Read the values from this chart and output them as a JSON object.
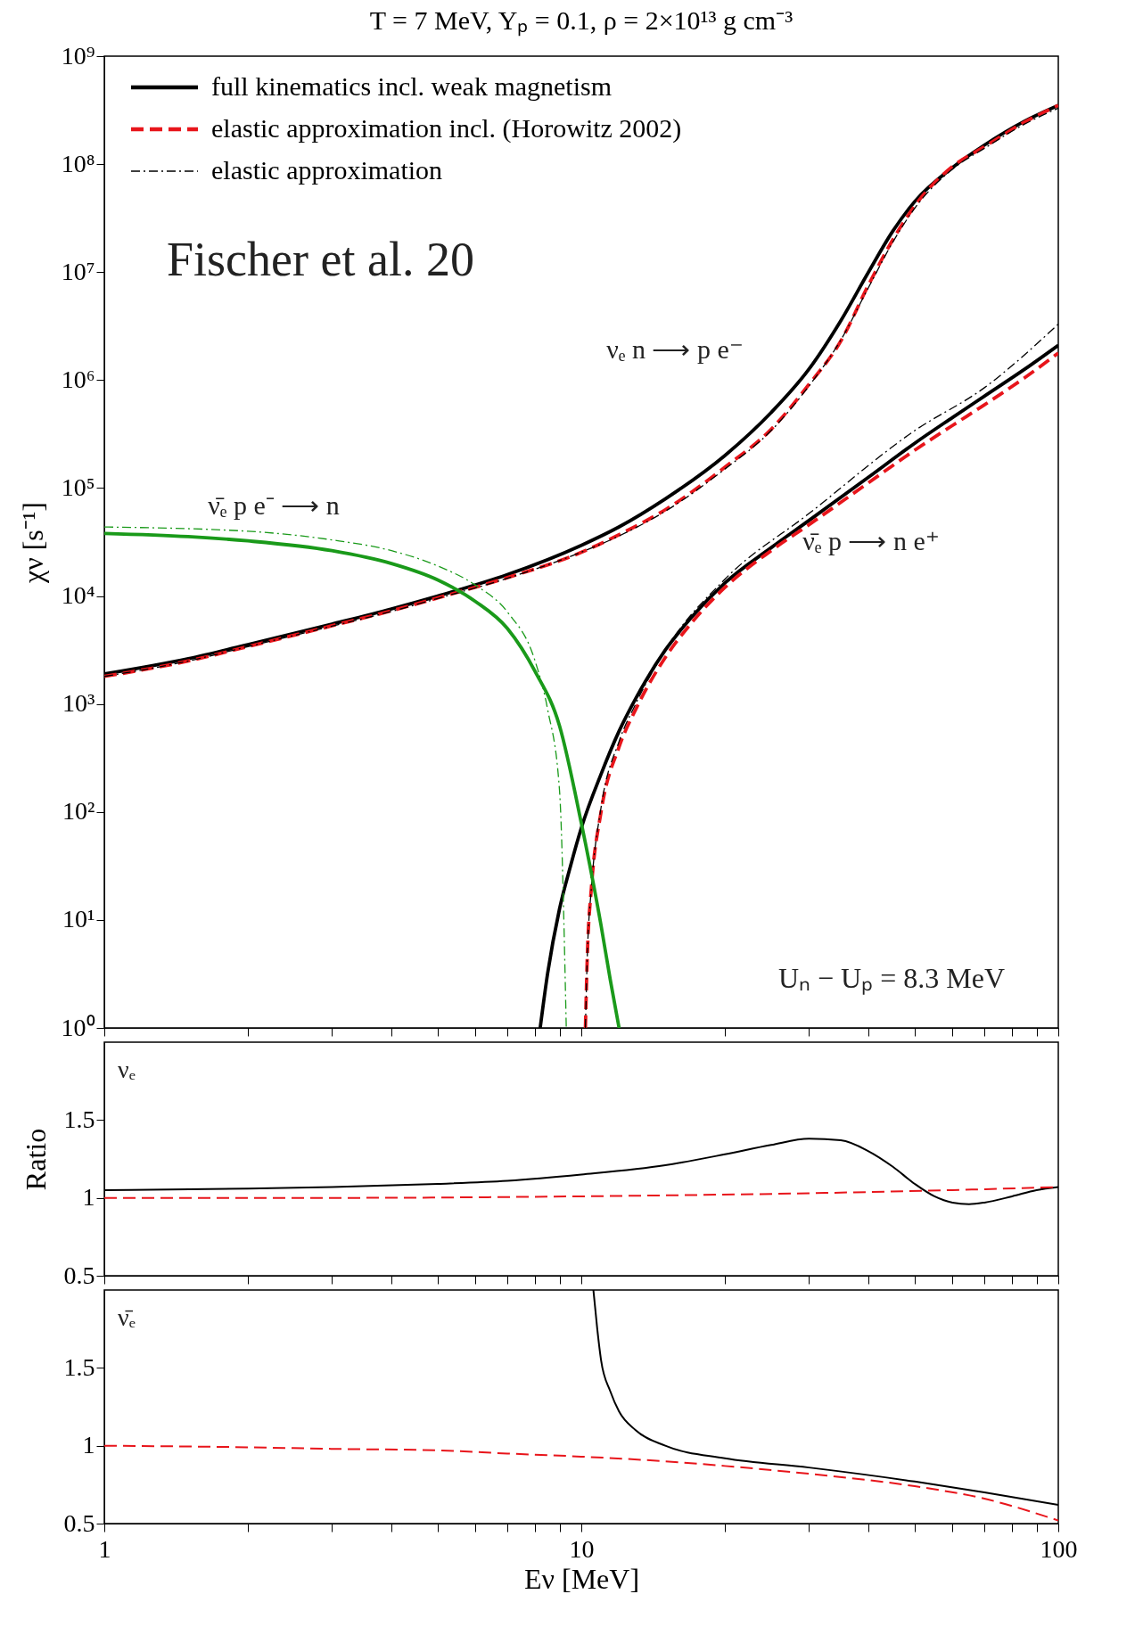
{
  "chart_data": [
    {
      "type": "line",
      "title": "T = 7 MeV, Yₚ = 0.1, ρ = 2×10¹³ g cm⁻³",
      "ylabel": "χν [s⁻¹]",
      "log": "xy",
      "xlim": [
        1,
        100
      ],
      "ylim": [
        1,
        1000000000
      ],
      "xticks": [
        1,
        {
          "value": 2,
          "label": null
        },
        {
          "value": 3,
          "label": null
        },
        {
          "value": 4,
          "label": null
        },
        {
          "value": 5,
          "label": null
        },
        {
          "value": 6,
          "label": null
        },
        {
          "value": 7,
          "label": null
        },
        {
          "value": 8,
          "label": null
        },
        {
          "value": 9,
          "label": null
        },
        10,
        {
          "value": 20,
          "label": null
        },
        {
          "value": 30,
          "label": null
        },
        {
          "value": 40,
          "label": null
        },
        {
          "value": 50,
          "label": null
        },
        {
          "value": 60,
          "label": null
        },
        {
          "value": 70,
          "label": null
        },
        {
          "value": 80,
          "label": null
        },
        {
          "value": 90,
          "label": null
        },
        100
      ],
      "yticks": [
        {
          "value": 1,
          "label": "10⁰"
        },
        {
          "value": 10,
          "label": "10¹"
        },
        {
          "value": 100,
          "label": "10²"
        },
        {
          "value": 1000,
          "label": "10³"
        },
        {
          "value": 10000,
          "label": "10⁴"
        },
        {
          "value": 100000,
          "label": "10⁵"
        },
        {
          "value": 1000000,
          "label": "10⁶"
        },
        {
          "value": 10000000,
          "label": "10⁷"
        },
        {
          "value": 100000000,
          "label": "10⁸"
        },
        {
          "value": 1000000000,
          "label": "10⁹"
        }
      ],
      "tick_labels": "y",
      "grid": false,
      "legend": "top left",
      "series": [
        {
          "name": "full kinematics incl. weak magnetism",
          "color": "#000000",
          "line_style": "solid",
          "x": [
            1,
            1.5,
            2,
            3,
            4,
            5,
            7,
            10,
            12,
            15,
            20,
            25,
            30,
            35,
            40,
            45,
            50,
            60,
            70,
            85,
            100
          ],
          "values": [
            1900,
            2630,
            3550,
            5500,
            7600,
            10000,
            15800,
            29500,
            43700,
            79400,
            200000,
            500000,
            1260000,
            3550000,
            10000000,
            24000000,
            45000000,
            93000000,
            150000000,
            250000000,
            350000000
          ]
        },
        {
          "name": "elastic approximation incl. (Horowitz 2002)",
          "color": "#e8151b",
          "line_style": "dashed",
          "x": [
            1,
            1.5,
            2,
            3,
            4,
            5,
            7,
            10,
            12,
            15,
            20,
            25,
            30,
            35,
            40,
            45,
            50,
            60,
            70,
            85,
            100
          ],
          "values": [
            1800,
            2500,
            3400,
            5300,
            7300,
            9600,
            14800,
            25400,
            37000,
            63000,
            156000,
            350000,
            910000,
            2300000,
            7600000,
            20000000,
            41000000,
            95000000,
            145000000,
            245000000,
            350000000
          ]
        },
        {
          "name": "elastic approximation",
          "color": "#000000",
          "line_style": "dotted",
          "x": [
            1,
            1.5,
            2,
            3,
            4,
            5,
            7,
            10,
            12,
            15,
            20,
            25,
            30,
            35,
            40,
            45,
            50,
            60,
            70,
            85,
            100
          ],
          "values": [
            1800,
            2500,
            3400,
            5250,
            7200,
            9500,
            14600,
            25500,
            36000,
            61000,
            150000,
            340000,
            880000,
            2350000,
            7200000,
            19000000,
            39000000,
            90000000,
            140000000,
            235000000,
            330000000
          ]
        },
        {
          "color": "#000000",
          "line_style": "solid",
          "x": [
            8.2,
            8.5,
            9,
            9.5,
            10,
            11,
            12,
            13,
            15,
            17,
            20,
            25,
            30,
            40,
            50,
            60,
            70,
            85,
            100
          ],
          "values": [
            1,
            3.2,
            12.6,
            32,
            71,
            224,
            560,
            1120,
            3160,
            6300,
            13200,
            28000,
            50000,
            126000,
            260000,
            450000,
            710000,
            1260000,
            2100000
          ]
        },
        {
          "color": "#e8151b",
          "line_style": "dashed",
          "x": [
            10.2,
            10.3,
            10.5,
            11,
            12,
            13,
            15,
            17,
            20,
            25,
            30,
            40,
            50,
            60,
            70,
            85,
            100
          ],
          "values": [
            1,
            5,
            20,
            100,
            400,
            890,
            2700,
            5600,
            12000,
            26300,
            45700,
            112000,
            224000,
            380000,
            590000,
            1050000,
            1780000
          ]
        },
        {
          "color": "#000000",
          "line_style": "dotted",
          "x": [
            10.2,
            10.3,
            10.5,
            11,
            12,
            13,
            15,
            20,
            30,
            50,
            70,
            100
          ],
          "values": [
            1,
            5,
            20,
            110,
            450,
            1000,
            3160,
            14300,
            58000,
            340000,
            850000,
            3300000
          ]
        },
        {
          "color": "#1a9a1a",
          "line_style": "solid",
          "x": [
            1,
            1.5,
            2,
            3,
            4,
            5,
            6,
            7,
            8,
            9,
            10,
            11,
            11.5,
            12
          ],
          "values": [
            38000,
            35500,
            32400,
            26300,
            20000,
            14100,
            8900,
            5000,
            2000,
            630,
            79,
            8.9,
            2.8,
            1
          ]
        },
        {
          "color": "#1a9a1a",
          "line_style": "dotted",
          "x": [
            1,
            2,
            3,
            4,
            5,
            6,
            7,
            8,
            8.5,
            9,
            9.3
          ],
          "values": [
            43600,
            39800,
            33100,
            26300,
            19000,
            12600,
            7100,
            2500,
            890,
            160,
            1
          ]
        }
      ],
      "annotations": [
        "νₑ n ⟶ p e⁻",
        "ν̄ₑ p e⁻ ⟶ n",
        "ν̄ₑ p ⟶ n e⁺",
        "Fischer et al. 20",
        "Uₙ − Uₚ = 8.3 MeV"
      ]
    },
    {
      "type": "line",
      "ylabel": "Ratio",
      "log": "x",
      "xlim": [
        1,
        100
      ],
      "ylim": [
        0.5,
        2
      ],
      "xticks": [
        1,
        {
          "value": 2,
          "label": null
        },
        {
          "value": 3,
          "label": null
        },
        {
          "value": 4,
          "label": null
        },
        {
          "value": 5,
          "label": null
        },
        {
          "value": 6,
          "label": null
        },
        {
          "value": 7,
          "label": null
        },
        {
          "value": 8,
          "label": null
        },
        {
          "value": 9,
          "label": null
        },
        10,
        {
          "value": 20,
          "label": null
        },
        {
          "value": 30,
          "label": null
        },
        {
          "value": 40,
          "label": null
        },
        {
          "value": 50,
          "label": null
        },
        {
          "value": 60,
          "label": null
        },
        {
          "value": 70,
          "label": null
        },
        {
          "value": 80,
          "label": null
        },
        {
          "value": 90,
          "label": null
        },
        100
      ],
      "yticks": [
        0.5,
        1,
        1.5
      ],
      "tick_labels": "y",
      "grid": false,
      "series": [
        {
          "color": "#000000",
          "line_style": "solid",
          "x": [
            1,
            2,
            3,
            5,
            7,
            10,
            15,
            20,
            25,
            30,
            35,
            40,
            45,
            50,
            55,
            60,
            65,
            70,
            80,
            90,
            100
          ],
          "values": [
            1.05,
            1.06,
            1.07,
            1.09,
            1.11,
            1.15,
            1.21,
            1.28,
            1.34,
            1.38,
            1.37,
            1.3,
            1.2,
            1.09,
            1.01,
            0.97,
            0.96,
            0.97,
            1.01,
            1.05,
            1.07
          ]
        },
        {
          "color": "#e8151b",
          "line_style": "dashed",
          "x": [
            1,
            3,
            10,
            30,
            60,
            100
          ],
          "values": [
            1.0,
            1.0,
            1.01,
            1.03,
            1.05,
            1.07
          ]
        }
      ],
      "annotations": [
        "νₑ"
      ]
    },
    {
      "type": "line",
      "xlabel": "Eν [MeV]",
      "log": "x",
      "xlim": [
        1,
        100
      ],
      "ylim": [
        0.5,
        2
      ],
      "xticks": [
        1,
        {
          "value": 2,
          "label": null
        },
        {
          "value": 3,
          "label": null
        },
        {
          "value": 4,
          "label": null
        },
        {
          "value": 5,
          "label": null
        },
        {
          "value": 6,
          "label": null
        },
        {
          "value": 7,
          "label": null
        },
        {
          "value": 8,
          "label": null
        },
        {
          "value": 9,
          "label": null
        },
        10,
        {
          "value": 20,
          "label": null
        },
        {
          "value": 30,
          "label": null
        },
        {
          "value": 40,
          "label": null
        },
        {
          "value": 50,
          "label": null
        },
        {
          "value": 60,
          "label": null
        },
        {
          "value": 70,
          "label": null
        },
        {
          "value": 80,
          "label": null
        },
        {
          "value": 90,
          "label": null
        },
        100
      ],
      "yticks": [
        0.5,
        1,
        1.5
      ],
      "grid": false,
      "series": [
        {
          "color": "#000000",
          "line_style": "solid",
          "x": [
            10.6,
            10.8,
            11,
            11.5,
            12,
            13,
            15,
            20,
            30,
            50,
            70,
            100
          ],
          "values": [
            2.0,
            1.75,
            1.55,
            1.35,
            1.22,
            1.1,
            1.0,
            0.92,
            0.86,
            0.77,
            0.7,
            0.62
          ]
        },
        {
          "color": "#e8151b",
          "line_style": "dashed",
          "x": [
            1,
            2,
            3,
            5,
            7,
            10,
            15,
            20,
            30,
            50,
            70,
            100
          ],
          "values": [
            1.0,
            0.99,
            0.98,
            0.97,
            0.95,
            0.93,
            0.9,
            0.87,
            0.82,
            0.74,
            0.66,
            0.52
          ]
        }
      ],
      "annotations": [
        "ν̄ₑ"
      ]
    }
  ]
}
